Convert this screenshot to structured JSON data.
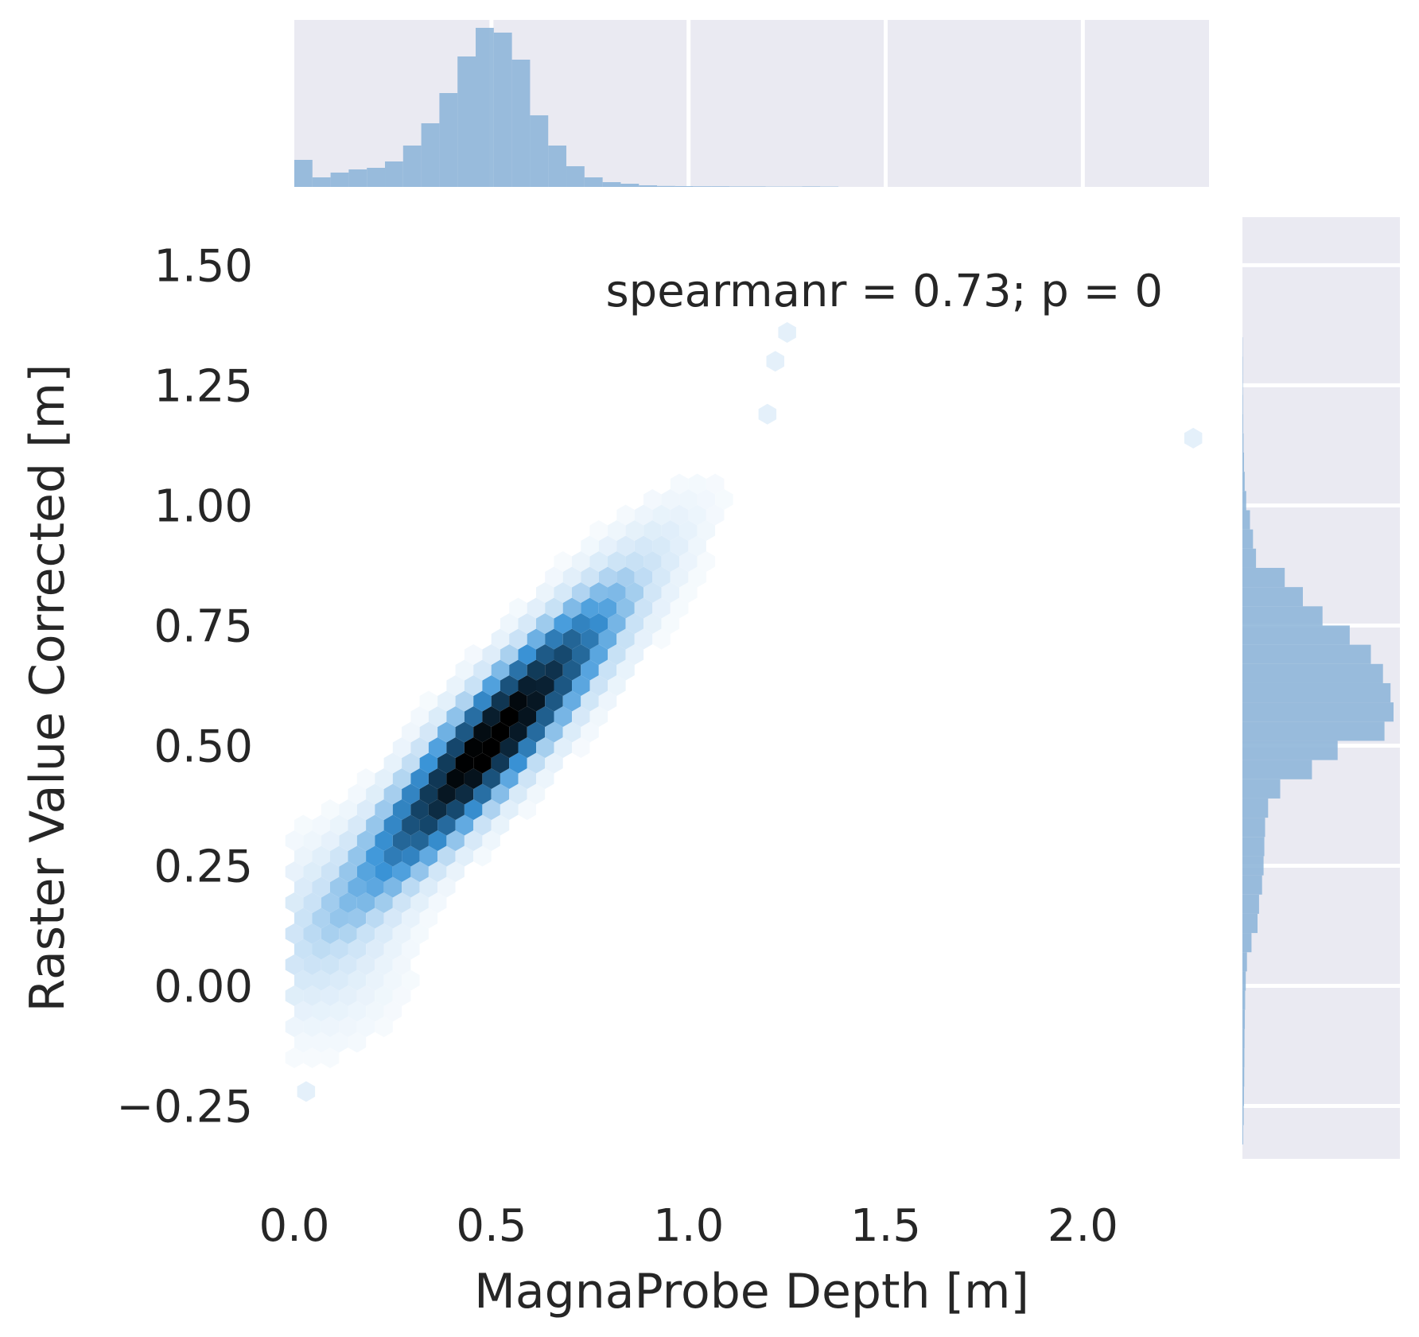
{
  "chart_data": [
    {
      "type": "heatmap",
      "subtype": "hexbin",
      "xlabel": "MagnaProbe Depth [m]",
      "ylabel": "Raster Value Corrected [m]",
      "xlim": [
        0.0,
        2.32
      ],
      "ylim": [
        -0.36,
        1.6
      ],
      "x_ticks": [
        0.0,
        0.5,
        1.0,
        1.5,
        2.0
      ],
      "x_tick_labels": [
        "0.0",
        "0.5",
        "1.0",
        "1.5",
        "2.0"
      ],
      "y_ticks": [
        -0.25,
        0.0,
        0.25,
        0.5,
        0.75,
        1.0,
        1.25,
        1.5
      ],
      "y_tick_labels": [
        "−0.25",
        "0.00",
        "0.25",
        "0.50",
        "0.75",
        "1.00",
        "1.25",
        "1.50"
      ],
      "annotation": "spearmanr = 0.73; p = 0",
      "colormap": [
        "#ffffff",
        "#c6e0f5",
        "#3b95d9",
        "#15486e",
        "#000000"
      ],
      "density_model": {
        "main_cluster": {
          "center": [
            0.5,
            0.51
          ],
          "sd_major": 0.27,
          "sd_minor": 0.058,
          "angle_deg": 43,
          "weight": 1.0
        },
        "low_tail": {
          "center": [
            0.08,
            0.1
          ],
          "sd_major": 0.13,
          "sd_minor": 0.12,
          "angle_deg": 60,
          "weight": 0.09
        },
        "sparse_points": [
          [
            1.2,
            1.19
          ],
          [
            1.22,
            1.3
          ],
          [
            1.25,
            1.36
          ],
          [
            2.28,
            1.14
          ],
          [
            0.03,
            -0.22
          ]
        ]
      }
    },
    {
      "type": "bar",
      "role": "x-marginal-histogram",
      "bin_edges_start": 0.0,
      "bin_width": 0.046,
      "values": [
        0.17,
        0.06,
        0.09,
        0.11,
        0.12,
        0.16,
        0.26,
        0.4,
        0.59,
        0.82,
        1.0,
        0.97,
        0.8,
        0.45,
        0.26,
        0.13,
        0.06,
        0.03,
        0.02,
        0.01,
        0.006,
        0.005,
        0.004,
        0.004,
        0.003,
        0.003,
        0.002,
        0.002,
        0.003,
        0.002
      ],
      "color": "#8fb6d9",
      "grid_x": [
        0.5,
        1.0,
        1.5,
        2.0
      ]
    },
    {
      "type": "bar",
      "role": "y-marginal-histogram",
      "orientation": "horizontal",
      "bin_edges_start": -0.33,
      "bin_width": 0.04,
      "values": [
        0.005,
        0.008,
        0.01,
        0.012,
        0.013,
        0.014,
        0.016,
        0.018,
        0.022,
        0.03,
        0.06,
        0.1,
        0.11,
        0.13,
        0.14,
        0.145,
        0.15,
        0.17,
        0.25,
        0.46,
        0.63,
        0.94,
        1.0,
        0.98,
        0.93,
        0.85,
        0.71,
        0.53,
        0.4,
        0.28,
        0.09,
        0.07,
        0.05,
        0.025,
        0.015,
        0.01,
        0.007,
        0.005,
        0.004,
        0.003,
        0.003,
        0.002
      ],
      "color": "#8fb6d9",
      "grid_y": [
        -0.25,
        0.0,
        0.25,
        0.5,
        0.75,
        1.0,
        1.25,
        1.5
      ]
    }
  ]
}
